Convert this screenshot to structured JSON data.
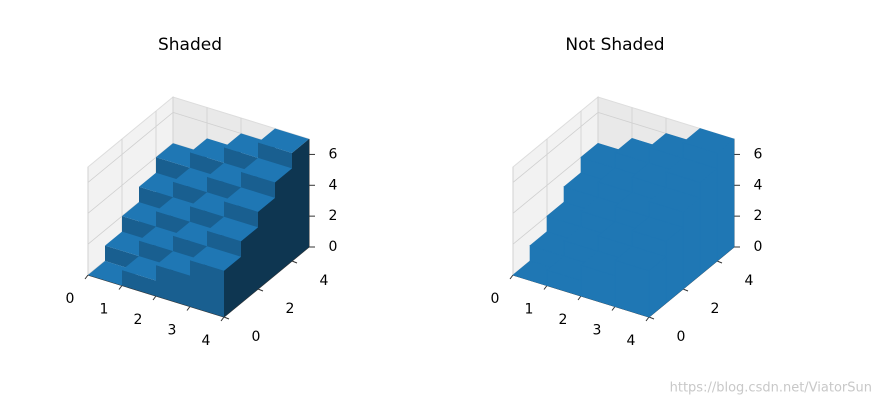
{
  "chart_data": [
    {
      "type": "bar3d",
      "title": "Shaded",
      "shade": true,
      "color": "#1f77b4",
      "x": [
        0,
        1,
        2,
        3
      ],
      "y": [
        0,
        1,
        2,
        3,
        4
      ],
      "values": [
        [
          0,
          1,
          2,
          3,
          4
        ],
        [
          1,
          2,
          3,
          4,
          5
        ],
        [
          2,
          3,
          4,
          5,
          6
        ],
        [
          3,
          4,
          5,
          6,
          7
        ]
      ],
      "xlim": [
        0,
        4
      ],
      "ylim": [
        0,
        5
      ],
      "zlim": [
        0,
        7
      ],
      "xticks": [
        0,
        1,
        2,
        3,
        4
      ],
      "yticks": [
        0,
        2,
        4
      ],
      "zticks": [
        0,
        2,
        4,
        6
      ],
      "grid": true
    },
    {
      "type": "bar3d",
      "title": "Not Shaded",
      "shade": false,
      "color": "#1f77b4",
      "x": [
        0,
        1,
        2,
        3
      ],
      "y": [
        0,
        1,
        2,
        3,
        4
      ],
      "values": [
        [
          0,
          1,
          2,
          3,
          4
        ],
        [
          1,
          2,
          3,
          4,
          5
        ],
        [
          2,
          3,
          4,
          5,
          6
        ],
        [
          3,
          4,
          5,
          6,
          7
        ]
      ],
      "xlim": [
        0,
        4
      ],
      "ylim": [
        0,
        5
      ],
      "zlim": [
        0,
        7
      ],
      "xticks": [
        0,
        1,
        2,
        3,
        4
      ],
      "yticks": [
        0,
        2,
        4
      ],
      "zticks": [
        0,
        2,
        4,
        6
      ],
      "grid": true
    }
  ],
  "watermark": "https://blog.csdn.net/ViatorSun"
}
